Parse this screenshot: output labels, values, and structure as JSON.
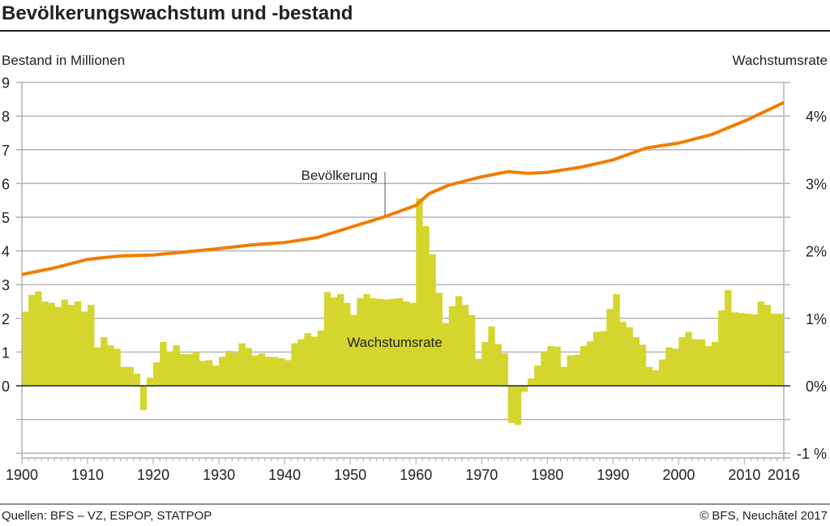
{
  "title": "Bevölkerungswachstum und -bestand",
  "footer": {
    "source": "Quellen: BFS – VZ, ESPOP, STATPOP",
    "copyright": "© BFS, Neuchâtel 2017"
  },
  "colors": {
    "line": "#f07d00",
    "bars": "#d4d62e",
    "grid": "#b4b4b4",
    "zero": "#222222"
  },
  "chart_data": {
    "type": "bar+line",
    "title": "Bevölkerungswachstum und -bestand",
    "y_left_label": "Bestand in Millionen",
    "y_right_label": "Wachstumsrate",
    "y_left_ticks": [
      "0",
      "1",
      "2",
      "3",
      "4",
      "5",
      "6",
      "7",
      "8",
      "9"
    ],
    "y_right_ticks": [
      "4%",
      "3%",
      "2%",
      "1%",
      "0%",
      "-1 %"
    ],
    "x_ticks": [
      "1900",
      "1910",
      "1920",
      "1930",
      "1940",
      "1950",
      "1960",
      "1970",
      "1980",
      "1990",
      "2000",
      "2010",
      "2016"
    ],
    "ylim_left": [
      -2,
      9
    ],
    "ylim_right_percent": [
      -1,
      4.5
    ],
    "xlim": [
      1900,
      2016
    ],
    "grid": true,
    "series": [
      {
        "name": "Bevölkerung",
        "type": "line",
        "axis": "left",
        "x": [
          1900,
          1905,
          1910,
          1915,
          1920,
          1925,
          1930,
          1935,
          1940,
          1945,
          1950,
          1955,
          1960,
          1962,
          1965,
          1970,
          1974,
          1977,
          1980,
          1985,
          1990,
          1995,
          2000,
          2005,
          2010,
          2016
        ],
        "values": [
          3.3,
          3.5,
          3.75,
          3.85,
          3.88,
          3.97,
          4.07,
          4.18,
          4.25,
          4.4,
          4.7,
          5.0,
          5.35,
          5.7,
          5.95,
          6.2,
          6.35,
          6.3,
          6.33,
          6.48,
          6.7,
          7.05,
          7.2,
          7.45,
          7.85,
          8.4
        ]
      },
      {
        "name": "Wachstumsrate",
        "type": "bar",
        "axis": "right",
        "unit": "%",
        "start_year": 1900,
        "values": [
          1.1,
          1.35,
          1.4,
          1.25,
          1.23,
          1.17,
          1.28,
          1.2,
          1.25,
          1.1,
          1.2,
          0.57,
          0.72,
          0.6,
          0.55,
          0.28,
          0.28,
          0.18,
          -0.36,
          0.12,
          0.35,
          0.65,
          0.5,
          0.6,
          0.47,
          0.47,
          0.5,
          0.37,
          0.38,
          0.3,
          0.43,
          0.52,
          0.49,
          0.63,
          0.56,
          0.45,
          0.48,
          0.43,
          0.43,
          0.41,
          0.38,
          0.63,
          0.69,
          0.78,
          0.73,
          0.82,
          1.39,
          1.31,
          1.36,
          1.23,
          1.05,
          1.3,
          1.36,
          1.3,
          1.29,
          1.28,
          1.29,
          1.3,
          1.25,
          1.23,
          2.78,
          2.37,
          1.95,
          1.38,
          0.93,
          1.18,
          1.33,
          1.2,
          1.05,
          0.4,
          0.65,
          0.88,
          0.62,
          0.48,
          -0.55,
          -0.58,
          -0.09,
          0.11,
          0.3,
          0.5,
          0.59,
          0.58,
          0.28,
          0.45,
          0.46,
          0.59,
          0.66,
          0.8,
          0.81,
          1.14,
          1.36,
          0.95,
          0.87,
          0.72,
          0.61,
          0.28,
          0.23,
          0.39,
          0.57,
          0.55,
          0.72,
          0.8,
          0.69,
          0.69,
          0.59,
          0.65,
          1.12,
          1.42,
          1.09,
          1.08,
          1.07,
          1.06,
          1.25,
          1.2,
          1.07,
          1.07
        ]
      }
    ]
  }
}
